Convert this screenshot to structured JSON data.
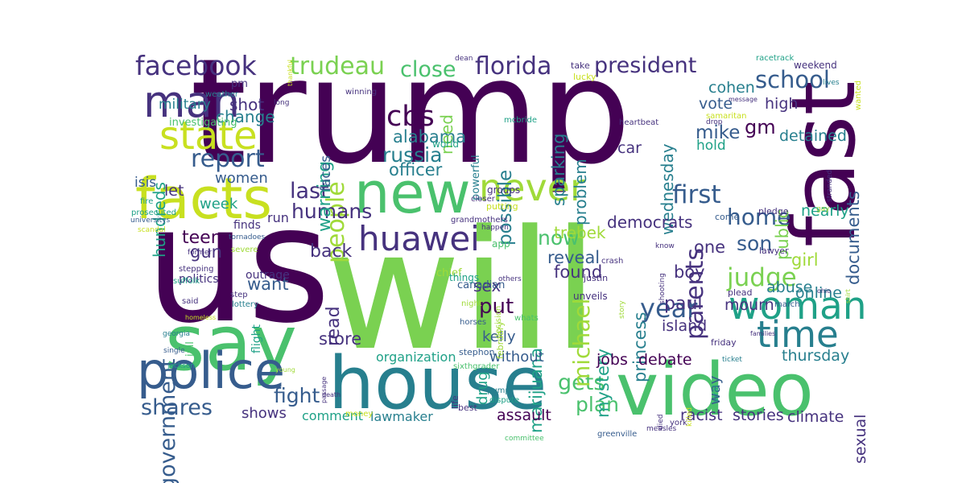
{
  "palette": [
    "#440154",
    "#46327e",
    "#365c8d",
    "#277f8e",
    "#1fa187",
    "#4ac16d",
    "#a0da39",
    "#d2e21b",
    "#fde725"
  ],
  "words": [
    {
      "text": "trump",
      "color": "#440154"
    },
    {
      "text": "us",
      "color": "#440154"
    },
    {
      "text": "will",
      "color": "#7ad151"
    },
    {
      "text": "house",
      "color": "#277f8e"
    },
    {
      "text": "video",
      "color": "#4ac16d"
    },
    {
      "text": "say",
      "color": "#4ac16d"
    },
    {
      "text": "fast",
      "color": "#440154"
    },
    {
      "text": "new",
      "color": "#4ac16d"
    },
    {
      "text": "facts",
      "color": "#c8e020"
    },
    {
      "text": "police",
      "color": "#365c8d"
    },
    {
      "text": "woman",
      "color": "#1fa187"
    },
    {
      "text": "time",
      "color": "#277f8e"
    },
    {
      "text": "man",
      "color": "#46327e"
    },
    {
      "text": "state",
      "color": "#c8e020"
    },
    {
      "text": "never",
      "color": "#a0da39"
    },
    {
      "text": "huawei",
      "color": "#46327e"
    },
    {
      "text": "facebook",
      "color": "#46327e"
    },
    {
      "text": "florida",
      "color": "#46327e"
    },
    {
      "text": "trudeau",
      "color": "#7ad151"
    },
    {
      "text": "school",
      "color": "#365c8d"
    },
    {
      "text": "president",
      "color": "#46327e"
    },
    {
      "text": "close",
      "color": "#4ac16d"
    },
    {
      "text": "cbs",
      "color": "#440154"
    },
    {
      "text": "report",
      "color": "#365c8d"
    },
    {
      "text": "people",
      "color": "#a0da39"
    },
    {
      "text": "first",
      "color": "#365c8d"
    },
    {
      "text": "parents",
      "color": "#46327e"
    },
    {
      "text": "home",
      "color": "#365c8d"
    },
    {
      "text": "year",
      "color": "#365c8d"
    },
    {
      "text": "judge",
      "color": "#7ad151"
    },
    {
      "text": "last",
      "color": "#46327e"
    },
    {
      "text": "shares",
      "color": "#365c8d"
    },
    {
      "text": "gets",
      "color": "#4ac16d"
    },
    {
      "text": "michael",
      "color": "#a0da39"
    },
    {
      "text": "government",
      "color": "#365c8d"
    },
    {
      "text": "son",
      "color": "#365c8d"
    },
    {
      "text": "now",
      "color": "#4ac16d"
    },
    {
      "text": "humans",
      "color": "#46327e"
    },
    {
      "text": "russia",
      "color": "#277f8e"
    },
    {
      "text": "fight",
      "color": "#365c8d"
    },
    {
      "text": "plan",
      "color": "#4ac16d"
    },
    {
      "text": "put",
      "color": "#440154"
    },
    {
      "text": "mourn",
      "color": "#46327e"
    },
    {
      "text": "paul",
      "color": "#46327e"
    },
    {
      "text": "princess",
      "color": "#277f8e"
    },
    {
      "text": "officer",
      "color": "#277f8e"
    },
    {
      "text": "alabama",
      "color": "#277f8e"
    },
    {
      "text": "possible",
      "color": "#277f8e"
    },
    {
      "text": "mike",
      "color": "#365c8d"
    },
    {
      "text": "gm",
      "color": "#440154"
    },
    {
      "text": "shot",
      "color": "#46327e"
    },
    {
      "text": "change",
      "color": "#277f8e"
    },
    {
      "text": "military",
      "color": "#277f8e"
    },
    {
      "text": "hundreds",
      "color": "#1fa187"
    },
    {
      "text": "isis",
      "color": "#365c8d"
    },
    {
      "text": "let",
      "color": "#46327e"
    },
    {
      "text": "week",
      "color": "#1fa187"
    },
    {
      "text": "women",
      "color": "#365c8d"
    },
    {
      "text": "teen",
      "color": "#440154"
    },
    {
      "text": "gun",
      "color": "#46327e"
    },
    {
      "text": "want",
      "color": "#365c8d"
    },
    {
      "text": "back",
      "color": "#46327e"
    },
    {
      "text": "read",
      "color": "#46327e"
    },
    {
      "text": "store",
      "color": "#46327e"
    },
    {
      "text": "sex",
      "color": "#46327e"
    },
    {
      "text": "warning",
      "color": "#1fa187"
    },
    {
      "text": "need",
      "color": "#7ad151"
    },
    {
      "text": "faces",
      "color": "#365c8d"
    },
    {
      "text": "sparking",
      "color": "#277f8e"
    },
    {
      "text": "problem",
      "color": "#277f8e"
    },
    {
      "text": "wednesday",
      "color": "#277f8e"
    },
    {
      "text": "car",
      "color": "#46327e"
    },
    {
      "text": "public",
      "color": "#7ad151"
    },
    {
      "text": "documents",
      "color": "#365c8d"
    },
    {
      "text": "detained",
      "color": "#277f8e"
    },
    {
      "text": "nearly",
      "color": "#1fa187"
    },
    {
      "text": "hold",
      "color": "#1fa187"
    },
    {
      "text": "vote",
      "color": "#365c8d"
    },
    {
      "text": "high",
      "color": "#46327e"
    },
    {
      "text": "cohen",
      "color": "#277f8e"
    },
    {
      "text": "girl",
      "color": "#a0da39"
    },
    {
      "text": "boy",
      "color": "#46327e"
    },
    {
      "text": "one",
      "color": "#46327e"
    },
    {
      "text": "abuse",
      "color": "#277f8e"
    },
    {
      "text": "online",
      "color": "#277f8e"
    },
    {
      "text": "found",
      "color": "#46327e"
    },
    {
      "text": "reveal",
      "color": "#365c8d"
    },
    {
      "text": "mystery",
      "color": "#1fa187"
    },
    {
      "text": "marijuana",
      "color": "#1fa187"
    },
    {
      "text": "trebek",
      "color": "#a0da39"
    },
    {
      "text": "democrats",
      "color": "#46327e"
    },
    {
      "text": "island",
      "color": "#46327e"
    },
    {
      "text": "kelly",
      "color": "#365c8d"
    },
    {
      "text": "drug",
      "color": "#1fa187"
    },
    {
      "text": "jobs",
      "color": "#440154"
    },
    {
      "text": "debate",
      "color": "#440154"
    },
    {
      "text": "thursday",
      "color": "#277f8e"
    },
    {
      "text": "way",
      "color": "#365c8d"
    },
    {
      "text": "sexual",
      "color": "#46327e"
    },
    {
      "text": "without",
      "color": "#365c8d"
    },
    {
      "text": "organization",
      "color": "#1fa187"
    },
    {
      "text": "assault",
      "color": "#440154"
    },
    {
      "text": "racist",
      "color": "#46327e"
    },
    {
      "text": "stories",
      "color": "#46327e"
    },
    {
      "text": "climate",
      "color": "#46327e"
    },
    {
      "text": "shows",
      "color": "#46327e"
    },
    {
      "text": "comment",
      "color": "#1fa187"
    },
    {
      "text": "lawmaker",
      "color": "#277f8e"
    },
    {
      "text": "run",
      "color": "#46327e"
    },
    {
      "text": "finds",
      "color": "#46327e"
    },
    {
      "text": "outrage",
      "color": "#46327e"
    },
    {
      "text": "politics",
      "color": "#46327e"
    },
    {
      "text": "flight",
      "color": "#1fa187"
    },
    {
      "text": "jail",
      "color": "#4ac16d"
    },
    {
      "text": "investigating",
      "color": "#4ac16d"
    },
    {
      "text": "pm",
      "color": "#46327e"
    },
    {
      "text": "weather",
      "color": "#277f8e"
    },
    {
      "text": "world",
      "color": "#1fa187"
    },
    {
      "text": "powerful",
      "color": "#277f8e"
    },
    {
      "text": "groups",
      "color": "#46327e"
    },
    {
      "text": "putting",
      "color": "#c8e020"
    },
    {
      "text": "closer",
      "color": "#46327e"
    },
    {
      "text": "grandmothers",
      "color": "#46327e"
    },
    {
      "text": "happen",
      "color": "#46327e"
    },
    {
      "text": "app",
      "color": "#4ac16d"
    },
    {
      "text": "chief",
      "color": "#a0da39"
    },
    {
      "text": "canadian",
      "color": "#365c8d"
    },
    {
      "text": "things",
      "color": "#1fa187"
    },
    {
      "text": "others",
      "color": "#46327e"
    },
    {
      "text": "decision",
      "color": "#a0da39"
    },
    {
      "text": "night",
      "color": "#a0da39"
    },
    {
      "text": "february",
      "color": "#a0da39"
    },
    {
      "text": "horses",
      "color": "#365c8d"
    },
    {
      "text": "whats",
      "color": "#4ac16d"
    },
    {
      "text": "stephon",
      "color": "#365c8d"
    },
    {
      "text": "sixthgrader",
      "color": "#4ac16d"
    },
    {
      "text": "life",
      "color": "#46327e"
    },
    {
      "text": "best",
      "color": "#46327e"
    },
    {
      "text": "pump",
      "color": "#277f8e"
    },
    {
      "text": "dispute",
      "color": "#1fa187"
    },
    {
      "text": "committee",
      "color": "#4ac16d"
    },
    {
      "text": "greenville",
      "color": "#365c8d"
    },
    {
      "text": "measles",
      "color": "#46327e"
    },
    {
      "text": "york",
      "color": "#46327e"
    },
    {
      "text": "died",
      "color": "#46327e"
    },
    {
      "text": "killed",
      "color": "#c8e020"
    },
    {
      "text": "viral",
      "color": "#1fa187"
    },
    {
      "text": "unveils",
      "color": "#46327e"
    },
    {
      "text": "story",
      "color": "#a0da39"
    },
    {
      "text": "march",
      "color": "#365c8d"
    },
    {
      "text": "friday",
      "color": "#46327e"
    },
    {
      "text": "families",
      "color": "#46327e"
    },
    {
      "text": "ticket",
      "color": "#277f8e"
    },
    {
      "text": "justin",
      "color": "#46327e"
    },
    {
      "text": "crash",
      "color": "#46327e"
    },
    {
      "text": "know",
      "color": "#46327e"
    },
    {
      "text": "shooting",
      "color": "#46327e"
    },
    {
      "text": "plead",
      "color": "#46327e"
    },
    {
      "text": "shirt",
      "color": "#a0da39"
    },
    {
      "text": "ohio",
      "color": "#46327e"
    },
    {
      "text": "lawyer",
      "color": "#46327e"
    },
    {
      "text": "come",
      "color": "#365c8d"
    },
    {
      "text": "pledge",
      "color": "#46327e"
    },
    {
      "text": "gay",
      "color": "#a0da39"
    },
    {
      "text": "stranded",
      "color": "#46327e"
    },
    {
      "text": "racetrack",
      "color": "#1fa187"
    },
    {
      "text": "lives",
      "color": "#277f8e"
    },
    {
      "text": "wanted",
      "color": "#c8e020"
    },
    {
      "text": "weekend",
      "color": "#46327e"
    },
    {
      "text": "message",
      "color": "#46327e"
    },
    {
      "text": "take",
      "color": "#46327e"
    },
    {
      "text": "lucky",
      "color": "#c8e020"
    },
    {
      "text": "heartbeat",
      "color": "#46327e"
    },
    {
      "text": "samaritan",
      "color": "#c8e020"
    },
    {
      "text": "drop",
      "color": "#46327e"
    },
    {
      "text": "winning",
      "color": "#46327e"
    },
    {
      "text": "dean",
      "color": "#46327e"
    },
    {
      "text": "mcbride",
      "color": "#1fa187"
    },
    {
      "text": "thankful",
      "color": "#c8e020"
    },
    {
      "text": "long",
      "color": "#46327e"
    },
    {
      "text": "fire",
      "color": "#1fa187"
    },
    {
      "text": "prosecuted",
      "color": "#1fa187"
    },
    {
      "text": "universitys",
      "color": "#365c8d"
    },
    {
      "text": "scandal",
      "color": "#c8e020"
    },
    {
      "text": "tornadoes",
      "color": "#365c8d"
    },
    {
      "text": "severe",
      "color": "#a0da39"
    },
    {
      "text": "former",
      "color": "#46327e"
    },
    {
      "text": "stepping",
      "color": "#46327e"
    },
    {
      "text": "step",
      "color": "#46327e"
    },
    {
      "text": "suffolk",
      "color": "#1fa187"
    },
    {
      "text": "said",
      "color": "#46327e"
    },
    {
      "text": "lottery",
      "color": "#277f8e"
    },
    {
      "text": "homeless",
      "color": "#c8e020"
    },
    {
      "text": "georgia",
      "color": "#277f8e"
    },
    {
      "text": "single",
      "color": "#365c8d"
    },
    {
      "text": "jackson",
      "color": "#1fa187"
    },
    {
      "text": "passage",
      "color": "#46327e"
    },
    {
      "text": "money",
      "color": "#c8e020"
    },
    {
      "text": "death",
      "color": "#46327e"
    },
    {
      "text": "young",
      "color": "#a0da39"
    }
  ]
}
